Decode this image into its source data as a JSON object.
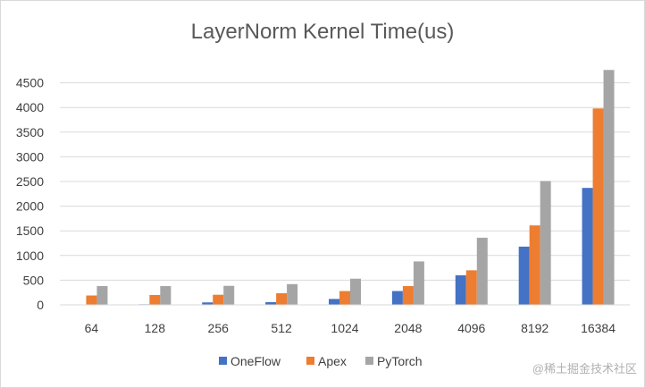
{
  "chart_data": {
    "type": "bar",
    "title": "LayerNorm Kernel Time(us)",
    "xlabel": "",
    "ylabel": "",
    "categories": [
      "64",
      "128",
      "256",
      "512",
      "1024",
      "2048",
      "4096",
      "8192",
      "16384"
    ],
    "series": [
      {
        "name": "OneFlow",
        "color": "#4472c4",
        "values": [
          5,
          12,
          50,
          55,
          120,
          280,
          600,
          1180,
          2370
        ]
      },
      {
        "name": "Apex",
        "color": "#ed7d31",
        "values": [
          190,
          200,
          205,
          235,
          280,
          380,
          700,
          1610,
          3980
        ]
      },
      {
        "name": "PyTorch",
        "color": "#a5a5a5",
        "values": [
          380,
          380,
          385,
          420,
          530,
          880,
          1360,
          2510,
          4760
        ]
      }
    ],
    "ylim": [
      0,
      5000
    ],
    "yticks": [
      0,
      500,
      1000,
      1500,
      2000,
      2500,
      3000,
      3500,
      4000,
      4500
    ],
    "ytick_labels": [
      "0",
      "500",
      "1000",
      "1500",
      "2000",
      "2500",
      "3000",
      "3500",
      "4000",
      "4500"
    ],
    "grid": true,
    "legend_position": "bottom"
  },
  "watermark": "@稀土掘金技术社区"
}
